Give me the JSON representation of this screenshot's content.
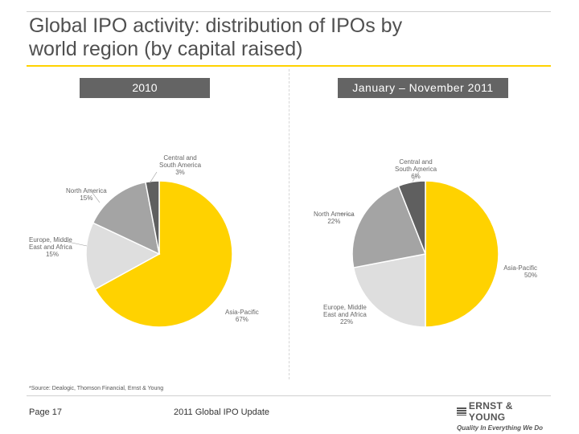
{
  "slide": {
    "title_line1": "Global IPO activity: distribution of IPOs by",
    "title_line2": "world region (by capital raised)",
    "source": "*Source: Dealogic, Thomson Financial, Ernst & Young",
    "page": "Page 17",
    "doc_title": "2011 Global IPO Update",
    "brand_name": "ERNST & YOUNG",
    "brand_tagline": "Quality In Everything We Do"
  },
  "colors": {
    "asia_pacific": "#ffd200",
    "emea": "#dedede",
    "north_america": "#a4a4a4",
    "central_south_america": "#5f5f5f",
    "label_bg": "#646464",
    "accent_rule": "#ffd200"
  },
  "chart_data": [
    {
      "type": "pie",
      "title": "2010",
      "slices": [
        {
          "label": "Asia-Pacific",
          "value": 67
        },
        {
          "label": "Europe, Middle East and Africa",
          "value": 15
        },
        {
          "label": "North America",
          "value": 15
        },
        {
          "label": "Central and South America",
          "value": 3
        }
      ],
      "label_texts": [
        {
          "text": "Asia-Pacific",
          "pct": "67%"
        },
        {
          "text": "Europe, Middle\nEast and Africa",
          "pct": "15%"
        },
        {
          "text": "North America",
          "pct": "15%"
        },
        {
          "text": "Central and\nSouth America",
          "pct": "3%"
        }
      ]
    },
    {
      "type": "pie",
      "title": "January – November 2011",
      "slices": [
        {
          "label": "Asia-Pacific",
          "value": 50
        },
        {
          "label": "Europe, Middle East and Africa",
          "value": 22
        },
        {
          "label": "North America",
          "value": 22
        },
        {
          "label": "Central and South America",
          "value": 6
        }
      ],
      "label_texts": [
        {
          "text": "Asia-Pacific",
          "pct": "50%"
        },
        {
          "text": "Europe, Middle\nEast and Africa",
          "pct": "22%"
        },
        {
          "text": "North America",
          "pct": "22%"
        },
        {
          "text": "Central and\nSouth America",
          "pct": "6%"
        }
      ]
    }
  ]
}
